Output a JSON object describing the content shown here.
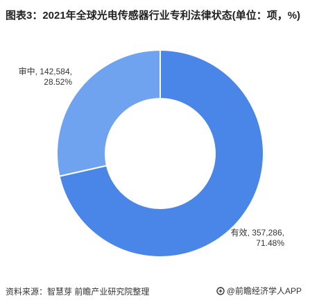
{
  "title": "图表3：2021年全球光电传感器行业专利法律状态(单位：项，%)",
  "chart_data": {
    "type": "pie",
    "donut": true,
    "slices": [
      {
        "label": "有效",
        "value": 357286,
        "percent": 71.48,
        "value_text": "357,286",
        "percent_text": "71.48%",
        "color": "#4a86e8"
      },
      {
        "label": "审中",
        "value": 142584,
        "percent": 28.52,
        "value_text": "142,584",
        "percent_text": "28.52%",
        "color": "#6fa3f0"
      }
    ]
  },
  "footer": {
    "source": "资料来源：智慧芽 前瞻产业研究院整理",
    "brand": "@前瞻经济学人APP"
  }
}
